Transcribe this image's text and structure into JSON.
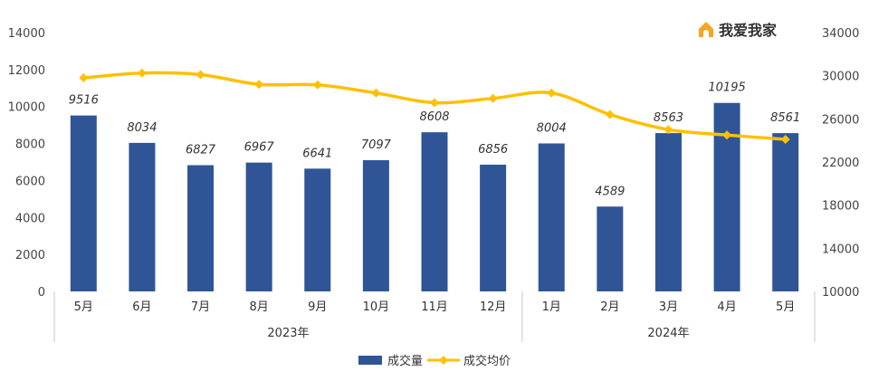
{
  "chart_data": {
    "type": "bar+line",
    "categories": [
      "5月",
      "6月",
      "7月",
      "8月",
      "9月",
      "10月",
      "11月",
      "12月",
      "1月",
      "2月",
      "3月",
      "4月",
      "5月"
    ],
    "groups": [
      {
        "label": "2023年",
        "span": [
          0,
          7
        ]
      },
      {
        "label": "2024年",
        "span": [
          8,
          12
        ]
      }
    ],
    "series": [
      {
        "name": "成交量",
        "type": "bar",
        "axis": "left",
        "color": "#2F5597",
        "values": [
          9516,
          8034,
          6827,
          6967,
          6641,
          7097,
          8608,
          6856,
          8004,
          4589,
          8563,
          10195,
          8561
        ]
      },
      {
        "name": "成交均价",
        "type": "line",
        "axis": "right",
        "color": "#FFC000",
        "values": [
          29800,
          30250,
          30100,
          29200,
          29150,
          28400,
          27500,
          27900,
          28400,
          26400,
          25000,
          24500,
          24100
        ]
      }
    ],
    "y_left": {
      "min": 0,
      "max": 14000,
      "step": 2000
    },
    "y_right": {
      "min": 10000,
      "max": 34000,
      "step": 4000
    },
    "legend": "bottom"
  },
  "logo": {
    "text": "我爱我家",
    "icon": "house-logo-icon",
    "color": "#F5A623"
  }
}
